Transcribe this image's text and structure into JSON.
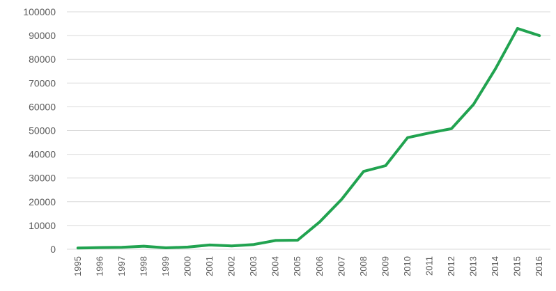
{
  "chart_data": {
    "type": "line",
    "title": "",
    "xlabel": "",
    "ylabel": "",
    "x": [
      "1995",
      "1996",
      "1997",
      "1998",
      "1999",
      "2000",
      "2001",
      "2002",
      "2003",
      "2004",
      "2005",
      "2006",
      "2007",
      "2008",
      "2009",
      "2010",
      "2011",
      "2012",
      "2013",
      "2014",
      "2015",
      "2016"
    ],
    "series": [
      {
        "values": [
          500,
          700,
          800,
          1300,
          600,
          900,
          1800,
          1400,
          2000,
          3700,
          3800,
          11500,
          21000,
          32800,
          35200,
          47000,
          49000,
          50800,
          61000,
          76000,
          93000,
          90000
        ],
        "color": "#21a350"
      }
    ],
    "ylim": [
      0,
      100000
    ],
    "yticks": [
      "0",
      "10000",
      "20000",
      "30000",
      "40000",
      "50000",
      "60000",
      "70000",
      "80000",
      "90000",
      "100000"
    ],
    "grid": true,
    "legend": "none"
  }
}
